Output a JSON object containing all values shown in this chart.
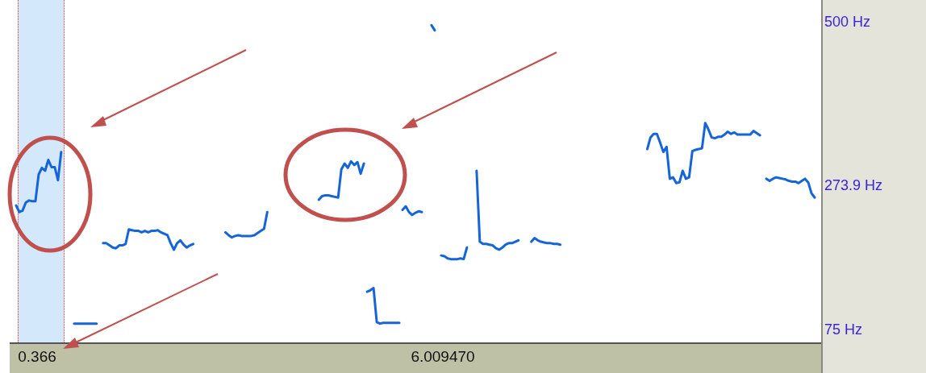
{
  "chart_data": {
    "type": "line",
    "categories": [
      null,
      null,
      null,
      null,
      null,
      null,
      null,
      null,
      null,
      null,
      null,
      null,
      null,
      null,
      null,
      null,
      null,
      null,
      null,
      null,
      null,
      null,
      null,
      null,
      null,
      null,
      null,
      null,
      null,
      null,
      null,
      null,
      null,
      null,
      null,
      null,
      null,
      null,
      null,
      null,
      null,
      null,
      null,
      null,
      null,
      null,
      null,
      null,
      null,
      null,
      null,
      null,
      null,
      null,
      null,
      null,
      null,
      null,
      null,
      null,
      null,
      null,
      null,
      null,
      null,
      null,
      null,
      null,
      null,
      null,
      null,
      null,
      null,
      null,
      null,
      null,
      null,
      null,
      null,
      null,
      null,
      null,
      null,
      null,
      null,
      null,
      null,
      null,
      null,
      null,
      null,
      null,
      null,
      null,
      null,
      null,
      null,
      null,
      null,
      null,
      null,
      null,
      null,
      null,
      null,
      null,
      null,
      null,
      null,
      null,
      null,
      null,
      null,
      null,
      null,
      null,
      null,
      null,
      null,
      null,
      null,
      null,
      null,
      null,
      null,
      null,
      null,
      null,
      null,
      null,
      null,
      null,
      null,
      null,
      null,
      null,
      null,
      null,
      null,
      null,
      null,
      null,
      null,
      null,
      null,
      null,
      null,
      null,
      null,
      null,
      null,
      null,
      null,
      null,
      null,
      null,
      null,
      null,
      null,
      null,
      null,
      null,
      null,
      null,
      null,
      null,
      null,
      null,
      null,
      null,
      null,
      null,
      null,
      null,
      null,
      null,
      null,
      null,
      null,
      null,
      null,
      null,
      null,
      null,
      null,
      null,
      null,
      null,
      null,
      null,
      null,
      null,
      null,
      null,
      null,
      null,
      null,
      null,
      null,
      null,
      null,
      null,
      null,
      null,
      null,
      null,
      null,
      null,
      null,
      null,
      null,
      null,
      null,
      null,
      null,
      null,
      null,
      null,
      null,
      null,
      null,
      null,
      null,
      null,
      null,
      null,
      null,
      null,
      null,
      null,
      null,
      null,
      null,
      null,
      null,
      null,
      null,
      null,
      null,
      null,
      null,
      null,
      null,
      null,
      null,
      null,
      null,
      null,
      null,
      null,
      null,
      null,
      null
    ],
    "series": [
      {
        "color": "#1565d8",
        "values": [
          null,
          null,
          247,
          238,
          240,
          251,
          254,
          253,
          253,
          290,
          299,
          295,
          310,
          300,
          300,
          282,
          321,
          null,
          null,
          null,
          84,
          84,
          84,
          84,
          84,
          84,
          84,
          84,
          null,
          195,
          195,
          192,
          189,
          188,
          192,
          192,
          194,
          214,
          213,
          212,
          212,
          210,
          212,
          210,
          212,
          212,
          213,
          210,
          208,
          206,
          195,
          186,
          195,
          199,
          193,
          189,
          192,
          194,
          null,
          null,
          null,
          null,
          null,
          null,
          null,
          null,
          null,
          210,
          206,
          203,
          205,
          206,
          205,
          205,
          205,
          205,
          206,
          209,
          212,
          215,
          238,
          null,
          null,
          null,
          null,
          null,
          null,
          null,
          null,
          null,
          null,
          null,
          null,
          null,
          null,
          null,
          255,
          260,
          261,
          261,
          260,
          259,
          258,
          297,
          305,
          299,
          308,
          303,
          307,
          291,
          305,
          null,
          null,
          null,
          null,
          null,
          null,
          null,
          null,
          null,
          null,
          null,
          241,
          246,
          238,
          234,
          237,
          239,
          238,
          null,
          null,
          496,
          489,
          null,
          178,
          177,
          174,
          173,
          173,
          173,
          174,
          173,
          189,
          null,
          null,
          295,
          197,
          194,
          194,
          193,
          192,
          188,
          186,
          189,
          193,
          195,
          195,
          197,
          199,
          null,
          null,
          null,
          197,
          202,
          199,
          197,
          196,
          195,
          195,
          194,
          194,
          193,
          null,
          null,
          null,
          null,
          null,
          null,
          null,
          null,
          null,
          null,
          null,
          null,
          null,
          null,
          null,
          null,
          null,
          null,
          null,
          null,
          null,
          null,
          null,
          null,
          null,
          null,
          325,
          341,
          346,
          346,
          334,
          321,
          328,
          284,
          286,
          278,
          279,
          295,
          284,
          286,
          322,
          324,
          325,
          326,
          361,
          352,
          341,
          340,
          342,
          342,
          345,
          349,
          346,
          348,
          345,
          345,
          345,
          345,
          345,
          350,
          347,
          344,
          null,
          284,
          281,
          284,
          286,
          285,
          284,
          283,
          281,
          280,
          280,
          278,
          281,
          284,
          279,
          264,
          258,
          null,
          null
        ]
      },
      {
        "color": "#1565d8",
        "values": [
          null,
          null,
          null,
          null,
          null,
          null,
          null,
          null,
          null,
          null,
          null,
          null,
          null,
          null,
          null,
          null,
          null,
          null,
          null,
          null,
          null,
          null,
          null,
          null,
          null,
          null,
          null,
          null,
          null,
          null,
          null,
          null,
          null,
          null,
          null,
          null,
          null,
          null,
          null,
          null,
          null,
          null,
          null,
          null,
          null,
          null,
          null,
          null,
          null,
          null,
          null,
          null,
          null,
          null,
          null,
          null,
          null,
          null,
          null,
          null,
          null,
          null,
          null,
          null,
          null,
          null,
          null,
          null,
          null,
          null,
          null,
          null,
          null,
          null,
          null,
          null,
          null,
          null,
          null,
          null,
          null,
          null,
          null,
          null,
          null,
          null,
          null,
          null,
          null,
          null,
          null,
          null,
          null,
          null,
          null,
          null,
          null,
          null,
          null,
          null,
          null,
          null,
          null,
          null,
          null,
          null,
          null,
          null,
          null,
          null,
          null,
          128,
          130,
          133,
          86,
          84,
          85,
          85,
          85,
          85,
          85,
          85,
          null,
          null,
          null,
          null,
          null,
          null,
          null,
          null,
          null,
          null,
          null,
          null,
          null,
          null,
          null,
          null,
          null,
          null,
          null,
          null,
          null,
          null,
          null,
          null,
          null,
          null,
          null,
          null,
          null,
          null,
          null,
          null,
          null,
          null,
          null,
          null,
          null,
          null,
          null,
          null,
          null,
          null,
          null,
          null,
          null,
          null,
          null,
          null,
          null,
          null,
          null,
          null,
          null,
          null,
          null,
          null,
          null,
          null,
          null,
          null,
          null,
          null,
          null,
          null,
          null,
          null,
          null,
          null,
          null,
          null,
          null,
          null,
          null,
          null,
          null,
          null,
          null,
          null,
          null,
          null,
          null,
          null,
          null,
          null,
          null,
          null,
          null,
          null,
          null,
          null,
          null,
          null,
          null,
          null,
          null,
          null,
          null,
          null,
          null,
          null,
          null,
          null,
          null,
          null,
          null,
          null,
          null,
          null,
          null,
          null,
          null,
          null,
          null,
          null,
          null,
          null,
          null,
          null,
          null,
          null,
          null,
          null,
          null,
          null,
          null,
          null,
          null,
          null,
          null,
          null,
          null
        ]
      }
    ],
    "ylim": [
      58,
      530
    ],
    "yticks": [
      {
        "value": 75,
        "label": "75 Hz"
      },
      {
        "value": 273.9,
        "label": "273.9 Hz"
      },
      {
        "value": 500,
        "label": "500 Hz"
      }
    ],
    "tick_labels": "y",
    "grid": false,
    "legend": false,
    "annotations": [
      "0.366",
      "6.009470"
    ]
  }
}
